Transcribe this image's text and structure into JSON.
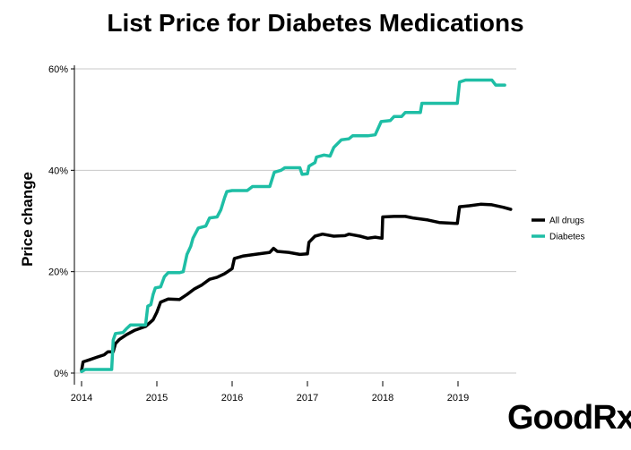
{
  "brand": "GoodRx",
  "chart_data": {
    "type": "line",
    "title": "List Price for Diabetes Medications",
    "ylabel": "Price change",
    "xlabel": "",
    "xlim": [
      2014,
      2019.75
    ],
    "ylim": [
      0,
      60
    ],
    "x_ticks": [
      {
        "value": 2014,
        "label": "2014"
      },
      {
        "value": 2015,
        "label": "2015"
      },
      {
        "value": 2016,
        "label": "2016"
      },
      {
        "value": 2017,
        "label": "2017"
      },
      {
        "value": 2018,
        "label": "2018"
      },
      {
        "value": 2019,
        "label": "2019"
      }
    ],
    "y_ticks": [
      {
        "value": 0,
        "label": "0%"
      },
      {
        "value": 20,
        "label": "20%"
      },
      {
        "value": 40,
        "label": "40%"
      },
      {
        "value": 60,
        "label": "60%"
      }
    ],
    "grid": "horizontal",
    "legend_position": "right",
    "series": [
      {
        "name": "All drugs",
        "color": "#000000",
        "points": [
          [
            2014.0,
            0.5
          ],
          [
            2014.02,
            2.2
          ],
          [
            2014.1,
            2.6
          ],
          [
            2014.2,
            3.1
          ],
          [
            2014.3,
            3.6
          ],
          [
            2014.35,
            4.2
          ],
          [
            2014.42,
            4.2
          ],
          [
            2014.45,
            5.8
          ],
          [
            2014.5,
            6.6
          ],
          [
            2014.6,
            7.6
          ],
          [
            2014.7,
            8.4
          ],
          [
            2014.85,
            9.2
          ],
          [
            2014.95,
            10.5
          ],
          [
            2015.0,
            12.0
          ],
          [
            2015.05,
            14.0
          ],
          [
            2015.15,
            14.6
          ],
          [
            2015.3,
            14.5
          ],
          [
            2015.4,
            15.5
          ],
          [
            2015.5,
            16.6
          ],
          [
            2015.6,
            17.4
          ],
          [
            2015.7,
            18.5
          ],
          [
            2015.8,
            18.9
          ],
          [
            2015.9,
            19.6
          ],
          [
            2016.0,
            20.6
          ],
          [
            2016.03,
            22.6
          ],
          [
            2016.15,
            23.1
          ],
          [
            2016.3,
            23.4
          ],
          [
            2016.5,
            23.8
          ],
          [
            2016.55,
            24.6
          ],
          [
            2016.6,
            24.0
          ],
          [
            2016.75,
            23.8
          ],
          [
            2016.9,
            23.4
          ],
          [
            2017.0,
            23.5
          ],
          [
            2017.02,
            25.8
          ],
          [
            2017.1,
            27.0
          ],
          [
            2017.2,
            27.4
          ],
          [
            2017.35,
            27.0
          ],
          [
            2017.5,
            27.1
          ],
          [
            2017.55,
            27.4
          ],
          [
            2017.7,
            27.0
          ],
          [
            2017.8,
            26.6
          ],
          [
            2017.9,
            26.8
          ],
          [
            2017.99,
            26.6
          ],
          [
            2018.0,
            30.8
          ],
          [
            2018.15,
            30.9
          ],
          [
            2018.3,
            30.9
          ],
          [
            2018.4,
            30.6
          ],
          [
            2018.6,
            30.2
          ],
          [
            2018.75,
            29.7
          ],
          [
            2018.99,
            29.5
          ],
          [
            2019.02,
            32.8
          ],
          [
            2019.15,
            33.0
          ],
          [
            2019.3,
            33.3
          ],
          [
            2019.45,
            33.2
          ],
          [
            2019.6,
            32.7
          ],
          [
            2019.7,
            32.3
          ]
        ]
      },
      {
        "name": "Diabetes",
        "color": "#1ebea5",
        "points": [
          [
            2014.0,
            0.3
          ],
          [
            2014.05,
            0.7
          ],
          [
            2014.4,
            0.7
          ],
          [
            2014.42,
            6.5
          ],
          [
            2014.45,
            7.8
          ],
          [
            2014.55,
            8.0
          ],
          [
            2014.6,
            8.8
          ],
          [
            2014.65,
            9.5
          ],
          [
            2014.85,
            9.5
          ],
          [
            2014.88,
            13.2
          ],
          [
            2014.92,
            13.5
          ],
          [
            2014.95,
            15.5
          ],
          [
            2014.98,
            16.8
          ],
          [
            2015.05,
            17.0
          ],
          [
            2015.1,
            19.0
          ],
          [
            2015.15,
            19.8
          ],
          [
            2015.3,
            19.8
          ],
          [
            2015.35,
            20.0
          ],
          [
            2015.4,
            23.4
          ],
          [
            2015.45,
            25.0
          ],
          [
            2015.48,
            26.6
          ],
          [
            2015.55,
            28.6
          ],
          [
            2015.65,
            29.0
          ],
          [
            2015.7,
            30.6
          ],
          [
            2015.8,
            30.8
          ],
          [
            2015.85,
            32.2
          ],
          [
            2015.9,
            34.6
          ],
          [
            2015.93,
            35.8
          ],
          [
            2016.0,
            36.0
          ],
          [
            2016.2,
            36.0
          ],
          [
            2016.27,
            36.8
          ],
          [
            2016.5,
            36.8
          ],
          [
            2016.53,
            38.2
          ],
          [
            2016.56,
            39.6
          ],
          [
            2016.65,
            40.0
          ],
          [
            2016.7,
            40.5
          ],
          [
            2016.9,
            40.5
          ],
          [
            2016.93,
            39.2
          ],
          [
            2017.0,
            39.3
          ],
          [
            2017.02,
            40.8
          ],
          [
            2017.1,
            41.5
          ],
          [
            2017.12,
            42.6
          ],
          [
            2017.22,
            43.0
          ],
          [
            2017.3,
            42.8
          ],
          [
            2017.35,
            44.5
          ],
          [
            2017.45,
            46.0
          ],
          [
            2017.55,
            46.2
          ],
          [
            2017.6,
            46.8
          ],
          [
            2017.8,
            46.8
          ],
          [
            2017.9,
            47.0
          ],
          [
            2017.98,
            49.6
          ],
          [
            2018.1,
            49.8
          ],
          [
            2018.15,
            50.6
          ],
          [
            2018.25,
            50.6
          ],
          [
            2018.3,
            51.4
          ],
          [
            2018.5,
            51.4
          ],
          [
            2018.52,
            53.2
          ],
          [
            2018.99,
            53.2
          ],
          [
            2019.02,
            57.4
          ],
          [
            2019.1,
            57.8
          ],
          [
            2019.45,
            57.8
          ],
          [
            2019.5,
            56.8
          ],
          [
            2019.62,
            56.8
          ]
        ]
      }
    ]
  }
}
